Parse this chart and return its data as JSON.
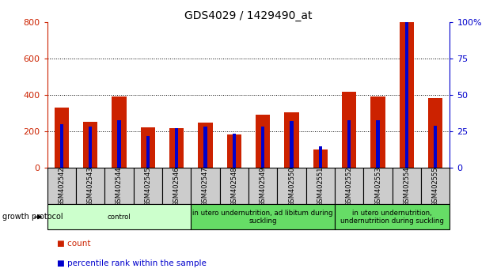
{
  "title": "GDS4029 / 1429490_at",
  "samples": [
    "GSM402542",
    "GSM402543",
    "GSM402544",
    "GSM402545",
    "GSM402546",
    "GSM402547",
    "GSM402548",
    "GSM402549",
    "GSM402550",
    "GSM402551",
    "GSM402552",
    "GSM402553",
    "GSM402554",
    "GSM402555"
  ],
  "counts": [
    330,
    253,
    393,
    222,
    220,
    250,
    185,
    295,
    308,
    103,
    418,
    393,
    800,
    385
  ],
  "percentile_pct": [
    30,
    28.5,
    32.75,
    21.9,
    27.5,
    28.5,
    23.75,
    28.5,
    32.5,
    14.75,
    32.75,
    32.75,
    100,
    28.75
  ],
  "ylim_left": [
    0,
    800
  ],
  "ylim_right": [
    0,
    100
  ],
  "yticks_left": [
    0,
    200,
    400,
    600,
    800
  ],
  "yticks_right": [
    0,
    25,
    50,
    75,
    100
  ],
  "group_configs": [
    [
      0,
      4,
      "#ccffcc",
      "control"
    ],
    [
      5,
      9,
      "#66dd66",
      "in utero undernutrition, ad libitum during\nsuckling"
    ],
    [
      10,
      13,
      "#66dd66",
      "in utero undernutrition,\nundernutrition during suckling"
    ]
  ],
  "bar_color": "#cc2200",
  "percentile_color": "#0000cc",
  "tick_area_color": "#cccccc",
  "title_fontsize": 10,
  "bar_width": 0.5,
  "blue_bar_width": 0.12
}
